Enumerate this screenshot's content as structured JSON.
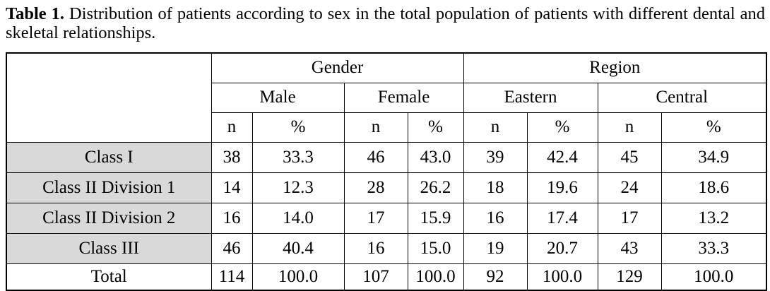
{
  "caption": {
    "label": "Table 1.",
    "text": "Distribution of patients according to sex in the total population of patients with different dental and skeletal relationships."
  },
  "table": {
    "groups": [
      "Gender",
      "Region"
    ],
    "subgroups": [
      "Male",
      "Female",
      "Eastern",
      "Central"
    ],
    "stats": [
      "n",
      "%",
      "n",
      "%",
      "n",
      "%",
      "n",
      "%"
    ],
    "rows": [
      {
        "label": "Class I",
        "cells": [
          "38",
          "33.3",
          "46",
          "43.0",
          "39",
          "42.4",
          "45",
          "34.9"
        ]
      },
      {
        "label": "Class II Division 1",
        "cells": [
          "14",
          "12.3",
          "28",
          "26.2",
          "18",
          "19.6",
          "24",
          "18.6"
        ]
      },
      {
        "label": "Class II Division 2",
        "cells": [
          "16",
          "14.0",
          "17",
          "15.9",
          "16",
          "17.4",
          "17",
          "13.2"
        ]
      },
      {
        "label": "Class III",
        "cells": [
          "46",
          "40.4",
          "16",
          "15.0",
          "19",
          "20.7",
          "43",
          "33.3"
        ]
      },
      {
        "label": "Total",
        "cells": [
          "114",
          "100.0",
          "107",
          "100.0",
          "92",
          "100.0",
          "129",
          "100.0"
        ]
      }
    ]
  },
  "colors": {
    "rowlabel_bg": "#d9d9d9",
    "border": "#000000",
    "text": "#000000"
  }
}
